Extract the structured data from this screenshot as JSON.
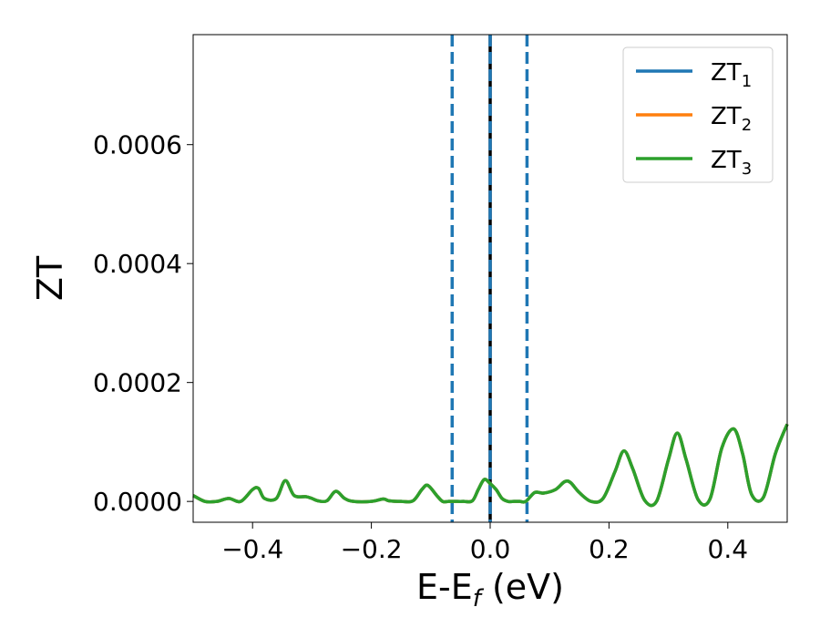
{
  "chart_data": {
    "type": "line",
    "xlabel": "E-E",
    "xlabel_sub": "f",
    "xlabel_unit": " (eV)",
    "ylabel": "ZT",
    "xlim": [
      -0.5,
      0.5
    ],
    "ylim": [
      -3.5e-05,
      0.000785
    ],
    "xticks": [
      -0.4,
      -0.2,
      0.0,
      0.2,
      0.4
    ],
    "xtick_labels": [
      "−0.4",
      "−0.2",
      "0.0",
      "0.2",
      "0.4"
    ],
    "yticks": [
      0.0,
      0.0002,
      0.0004,
      0.0006
    ],
    "ytick_labels": [
      "0.0000",
      "0.0002",
      "0.0004",
      "0.0006"
    ],
    "grid": false,
    "legend_position": "top-right",
    "vlines": [
      {
        "x": -0.064,
        "style": "dashed",
        "color": "#1f77b4"
      },
      {
        "x": 0.0,
        "style": "solid",
        "color": "#000000"
      },
      {
        "x": 0.0,
        "style": "dashed",
        "color": "#1f77b4"
      },
      {
        "x": 0.062,
        "style": "dashed",
        "color": "#1f77b4"
      }
    ],
    "x": [
      -0.5,
      -0.48,
      -0.46,
      -0.44,
      -0.42,
      -0.4,
      -0.39,
      -0.38,
      -0.36,
      -0.345,
      -0.33,
      -0.31,
      -0.3,
      -0.29,
      -0.275,
      -0.26,
      -0.245,
      -0.23,
      -0.2,
      -0.18,
      -0.17,
      -0.15,
      -0.13,
      -0.115,
      -0.105,
      -0.09,
      -0.08,
      -0.07,
      -0.06,
      -0.045,
      -0.03,
      -0.02,
      -0.01,
      0.0,
      0.01,
      0.02,
      0.03,
      0.04,
      0.05,
      0.06,
      0.075,
      0.09,
      0.11,
      0.125,
      0.135,
      0.15,
      0.17,
      0.19,
      0.21,
      0.225,
      0.24,
      0.26,
      0.28,
      0.3,
      0.315,
      0.33,
      0.35,
      0.37,
      0.39,
      0.41,
      0.425,
      0.44,
      0.46,
      0.48,
      0.5
    ],
    "series": [
      {
        "name": "ZT",
        "sub": "1",
        "color": "#1f77b4",
        "values": [
          1e-05,
          0.0,
          0.0,
          5e-06,
          0.0,
          2e-05,
          2.2e-05,
          5e-06,
          5e-06,
          3.5e-05,
          1e-05,
          8e-06,
          5e-06,
          1e-06,
          1e-06,
          1.7e-05,
          5e-06,
          0.0,
          0.0,
          4e-06,
          1e-06,
          0.0,
          1e-06,
          2e-05,
          2.7e-05,
          1e-05,
          0.0,
          0.0,
          0.0,
          0.0,
          1e-06,
          2e-05,
          3.7e-05,
          3e-05,
          2e-05,
          5e-06,
          0.0,
          0.0,
          0.0,
          0.0,
          1.5e-05,
          1.4e-05,
          2e-05,
          3.3e-05,
          3.2e-05,
          1.5e-05,
          0.0,
          5e-06,
          5e-05,
          8.5e-05,
          5.5e-05,
          2e-06,
          0.0,
          7e-05,
          0.000115,
          7e-05,
          3e-06,
          4e-06,
          9e-05,
          0.000122,
          8e-05,
          1.2e-05,
          7e-06,
          8e-05,
          0.00013
        ]
      },
      {
        "name": "ZT",
        "sub": "2",
        "color": "#ff7f0e",
        "values": [
          1e-05,
          0.0,
          0.0,
          5e-06,
          0.0,
          2e-05,
          2.2e-05,
          5e-06,
          5e-06,
          3.5e-05,
          1e-05,
          8e-06,
          5e-06,
          1e-06,
          1e-06,
          1.7e-05,
          5e-06,
          0.0,
          0.0,
          4e-06,
          1e-06,
          0.0,
          1e-06,
          2e-05,
          2.7e-05,
          1e-05,
          0.0,
          0.0,
          0.0,
          0.0,
          1e-06,
          2e-05,
          3.7e-05,
          3e-05,
          2e-05,
          5e-06,
          0.0,
          0.0,
          0.0,
          0.0,
          1.5e-05,
          1.4e-05,
          2e-05,
          3.3e-05,
          3.2e-05,
          1.5e-05,
          0.0,
          5e-06,
          5e-05,
          8.5e-05,
          5.5e-05,
          2e-06,
          0.0,
          7e-05,
          0.000115,
          7e-05,
          3e-06,
          4e-06,
          9e-05,
          0.000122,
          8e-05,
          1.2e-05,
          7e-06,
          8e-05,
          0.00013
        ]
      },
      {
        "name": "ZT",
        "sub": "3",
        "color": "#2ca02c",
        "values": [
          1e-05,
          0.0,
          0.0,
          5e-06,
          0.0,
          2e-05,
          2.2e-05,
          5e-06,
          5e-06,
          3.5e-05,
          1e-05,
          8e-06,
          5e-06,
          1e-06,
          1e-06,
          1.7e-05,
          5e-06,
          0.0,
          0.0,
          4e-06,
          1e-06,
          0.0,
          1e-06,
          2e-05,
          2.7e-05,
          1e-05,
          0.0,
          0.0,
          0.0,
          0.0,
          1e-06,
          2e-05,
          3.7e-05,
          3e-05,
          2e-05,
          5e-06,
          0.0,
          0.0,
          0.0,
          0.0,
          1.5e-05,
          1.4e-05,
          2e-05,
          3.3e-05,
          3.2e-05,
          1.5e-05,
          0.0,
          5e-06,
          5e-05,
          8.5e-05,
          5.5e-05,
          2e-06,
          0.0,
          7e-05,
          0.000115,
          7e-05,
          3e-06,
          4e-06,
          9e-05,
          0.000122,
          8e-05,
          1.2e-05,
          7e-06,
          8e-05,
          0.00013
        ]
      }
    ]
  }
}
